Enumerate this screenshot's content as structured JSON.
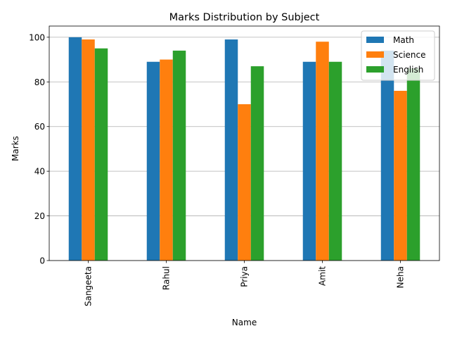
{
  "chart_data": {
    "type": "bar",
    "title": "Marks Distribution by Subject",
    "xlabel": "Name",
    "ylabel": "Marks",
    "categories": [
      "Sangeeta",
      "Rahul",
      "Priya",
      "Amit",
      "Neha"
    ],
    "series": [
      {
        "name": "Math",
        "color": "#1f77b4",
        "values": [
          100,
          89,
          99,
          89,
          94
        ]
      },
      {
        "name": "Science",
        "color": "#ff7f0e",
        "values": [
          99,
          90,
          70,
          98,
          76
        ]
      },
      {
        "name": "English",
        "color": "#2ca02c",
        "values": [
          95,
          94,
          87,
          89,
          86
        ]
      }
    ],
    "ylim": [
      0,
      105
    ],
    "yticks": [
      0,
      20,
      40,
      60,
      80,
      100
    ],
    "grid": "y",
    "legend": "top-right"
  }
}
